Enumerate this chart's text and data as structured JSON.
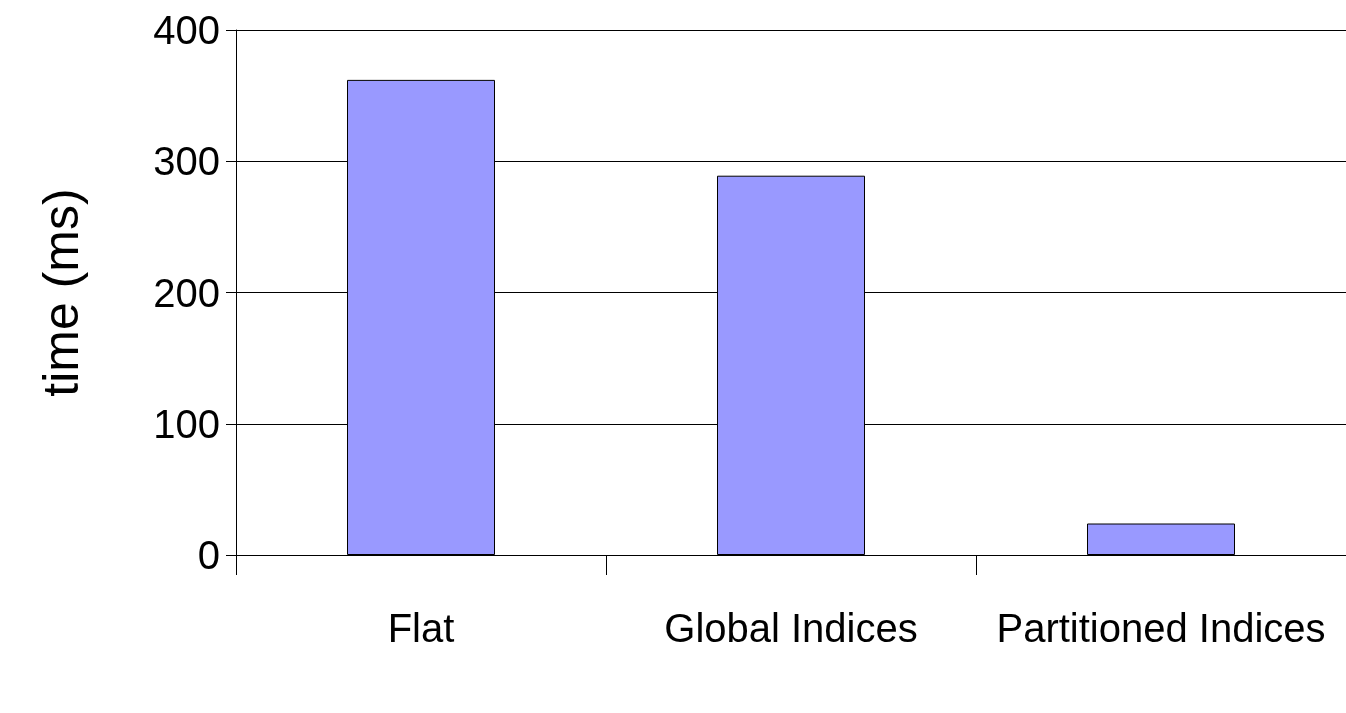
{
  "chart_data": {
    "type": "bar",
    "ylabel": "time (ms)",
    "categories": [
      "Flat",
      "Global Indices",
      "Partitioned Indices"
    ],
    "values": [
      362,
      289,
      24
    ],
    "color": "#9999ff",
    "ylim": [
      0,
      400
    ],
    "yticks": [
      0,
      100,
      200,
      300,
      400
    ],
    "grid": "y"
  }
}
